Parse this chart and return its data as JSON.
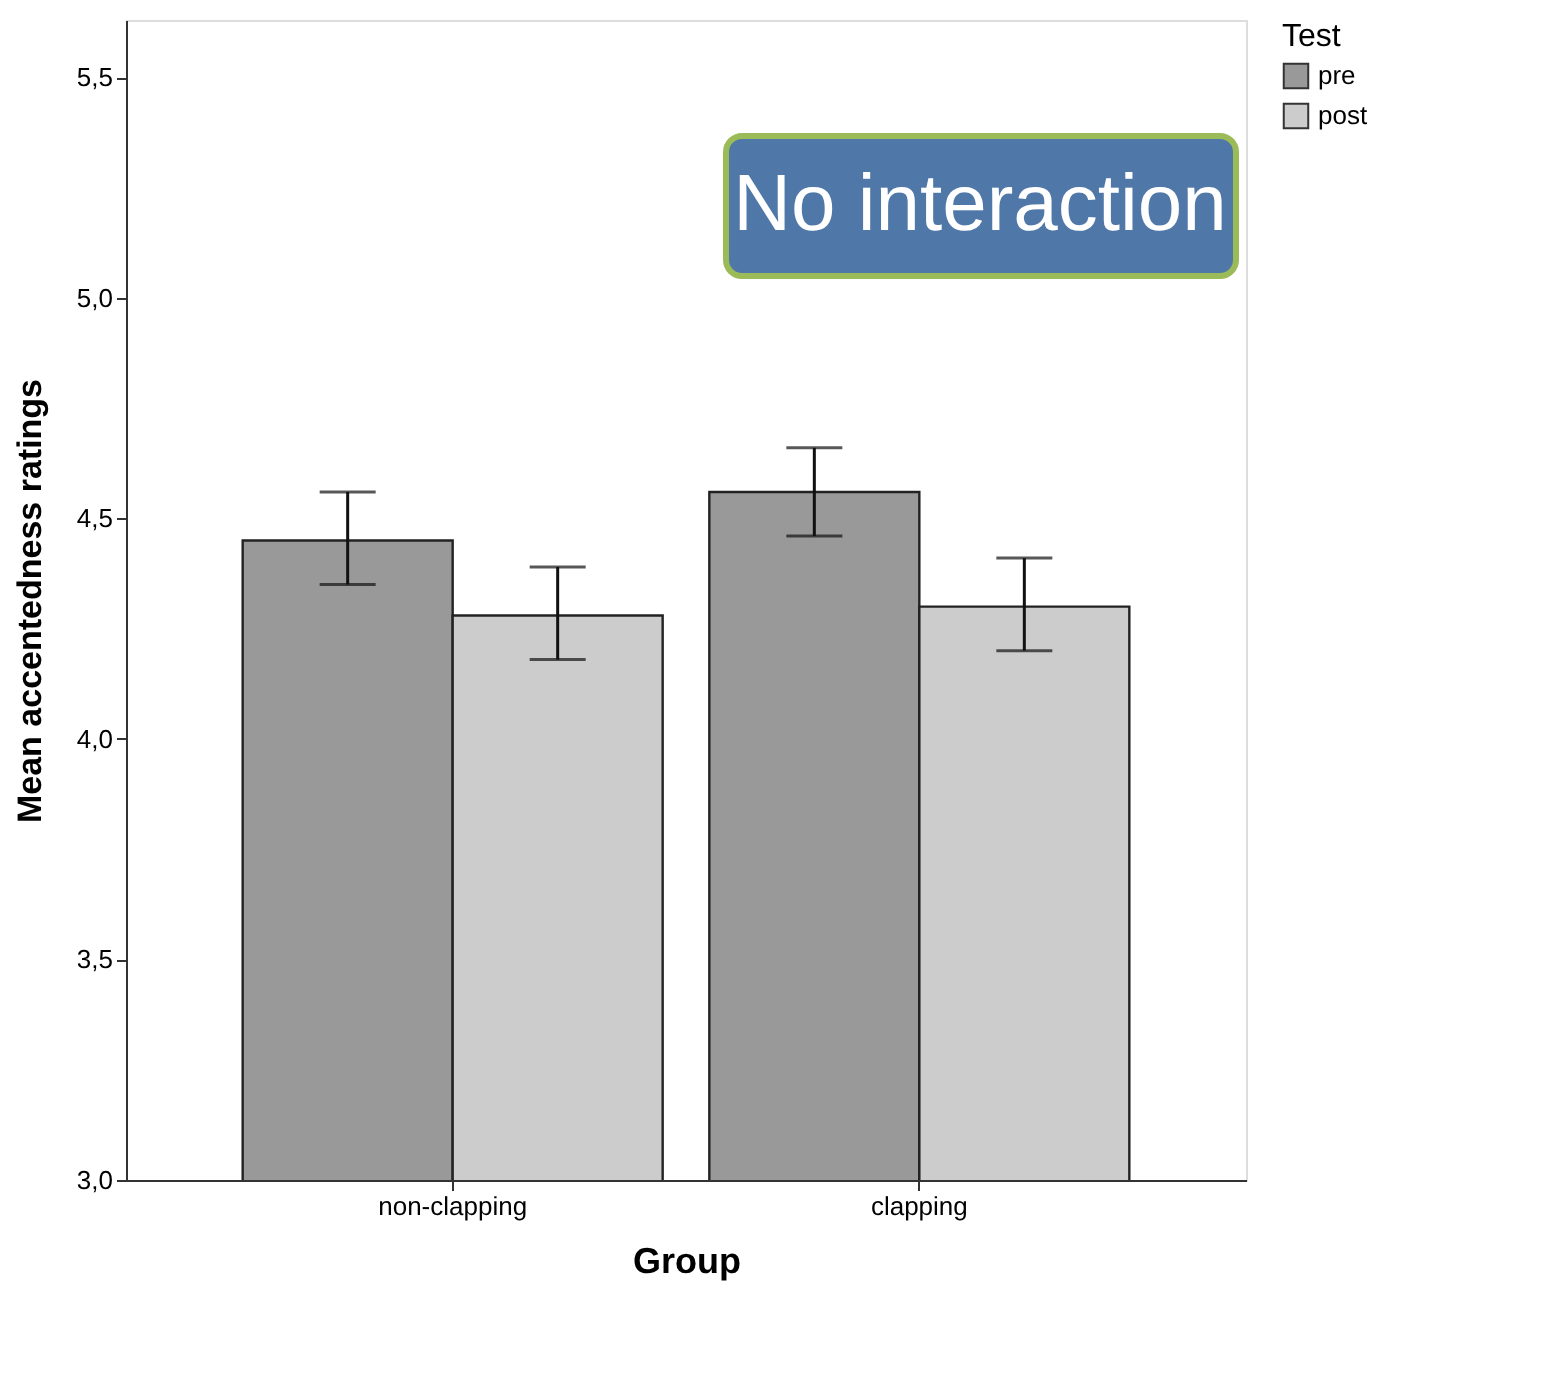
{
  "chart_data": {
    "type": "bar",
    "xlabel": "Group",
    "ylabel": "Mean accentedness ratings",
    "legend_title": "Test",
    "categories": [
      "non-clapping",
      "clapping"
    ],
    "series": [
      {
        "name": "pre",
        "color": "#999999",
        "values": [
          4.45,
          4.56
        ],
        "errors": [
          [
            4.35,
            4.56
          ],
          [
            4.46,
            4.66
          ]
        ]
      },
      {
        "name": "post",
        "color": "#cccccc",
        "values": [
          4.28,
          4.3
        ],
        "errors": [
          [
            4.18,
            4.39
          ],
          [
            4.2,
            4.41
          ]
        ]
      }
    ],
    "ylim": [
      3.0,
      5.63
    ],
    "yticks": [
      {
        "value": 3.0,
        "label": "3,0"
      },
      {
        "value": 3.5,
        "label": "3,5"
      },
      {
        "value": 4.0,
        "label": "4,0"
      },
      {
        "value": 4.5,
        "label": "4,5"
      },
      {
        "value": 5.0,
        "label": "5,0"
      },
      {
        "value": 5.5,
        "label": "5,5"
      }
    ],
    "grid": false,
    "legend": "top right",
    "annotations": [
      "No interaction"
    ]
  }
}
